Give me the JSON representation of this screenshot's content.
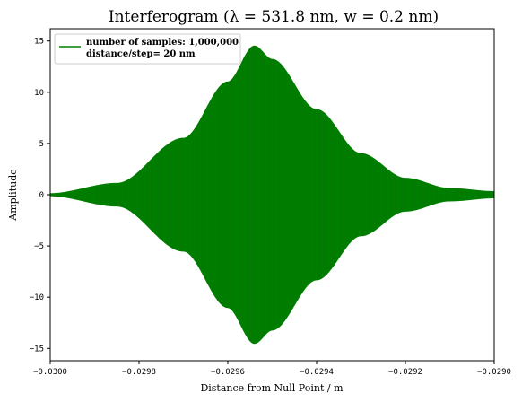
{
  "chart_data": {
    "type": "line",
    "title": "Interferogram (λ = 531.8 nm, w = 0.2 nm)",
    "xlabel": "Distance from Null Point / m",
    "ylabel": "Amplitude",
    "xlim": [
      -0.03,
      -0.029
    ],
    "ylim": [
      -16.2,
      16.2
    ],
    "xticks": [
      -0.03,
      -0.0298,
      -0.0296,
      -0.0294,
      -0.0292,
      -0.029
    ],
    "xtick_labels": [
      "−0.0300",
      "−0.0298",
      "−0.0296",
      "−0.0294",
      "−0.0292",
      "−0.0290"
    ],
    "yticks": [
      -15,
      -10,
      -5,
      0,
      5,
      10,
      15
    ],
    "ytick_labels": [
      "−15",
      "−10",
      "−5",
      "0",
      "5",
      "10",
      "15"
    ],
    "grid": false,
    "legend_position": "top-left",
    "series": [
      {
        "name": "number of samples: 1,000,000",
        "name_line2": "distance/step= 20 nm",
        "color": "#008000",
        "envelope": {
          "x": [
            -0.03,
            -0.02985,
            -0.0297,
            -0.0296,
            -0.02954,
            -0.0295,
            -0.0294,
            -0.0293,
            -0.0292,
            -0.0291,
            -0.029
          ],
          "amplitude": [
            0.1,
            1.1,
            5.5,
            11.0,
            14.5,
            13.2,
            8.3,
            4.0,
            1.6,
            0.6,
            0.3
          ]
        }
      }
    ]
  }
}
